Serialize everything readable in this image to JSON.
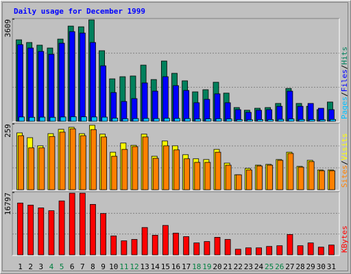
{
  "chart_data": {
    "type": "bar",
    "title": "Daily usage for December 1999",
    "title_color": "#0000ff",
    "legend_separator": "/",
    "categories": [
      "1",
      "2",
      "3",
      "4",
      "5",
      "6",
      "7",
      "8",
      "9",
      "10",
      "11",
      "12",
      "13",
      "14",
      "15",
      "16",
      "17",
      "18",
      "19",
      "20",
      "21",
      "22",
      "23",
      "24",
      "25",
      "26",
      "27",
      "28",
      "29",
      "30",
      "31"
    ],
    "category_colors": [
      "#000000",
      "#000000",
      "#000000",
      "#008040",
      "#008040",
      "#000000",
      "#000000",
      "#000000",
      "#000000",
      "#000000",
      "#008040",
      "#008040",
      "#000000",
      "#000000",
      "#000000",
      "#000000",
      "#000000",
      "#008040",
      "#008040",
      "#000000",
      "#000000",
      "#000000",
      "#000000",
      "#000000",
      "#008040",
      "#008040",
      "#000000",
      "#000000",
      "#000000",
      "#000000",
      "#000000"
    ],
    "panels": [
      {
        "ylim": [
          0,
          3609
        ],
        "yticks": [
          3609
        ],
        "grid": true,
        "series": [
          {
            "name": "Hits",
            "color": "#00805c",
            "values": [
              2880,
              2785,
              2690,
              2590,
              2905,
              3365,
              3340,
              3585,
              2495,
              1500,
              1575,
              1600,
              1985,
              1475,
              2130,
              1695,
              1430,
              1040,
              1115,
              1380,
              995,
              485,
              390,
              460,
              485,
              630,
              1160,
              630,
              530,
              410,
              680
            ]
          },
          {
            "name": "Files",
            "color": "#0000ff",
            "values": [
              2710,
              2590,
              2470,
              2370,
              2760,
              3170,
              3120,
              2785,
              1960,
              1015,
              700,
              800,
              1355,
              1065,
              1575,
              1260,
              1090,
              655,
              775,
              970,
              655,
              410,
              315,
              390,
              410,
              530,
              1065,
              530,
              630,
              460,
              410
            ]
          },
          {
            "name": "Pages",
            "color": "#00c0ff",
            "values": [
              150,
              140,
              145,
              140,
              150,
              160,
              155,
              150,
              145,
              110,
              90,
              95,
              100,
              95,
              105,
              100,
              95,
              80,
              85,
              90,
              80,
              60,
              55,
              60,
              60,
              70,
              80,
              65,
              60,
              55,
              65
            ]
          }
        ]
      },
      {
        "ylim": [
          0,
          259
        ],
        "yticks": [
          259
        ],
        "grid": true,
        "series": [
          {
            "name": "Visits",
            "color": "#ffff00",
            "values": [
              224,
              205,
              173,
              221,
              238,
              246,
              221,
              254,
              219,
              148,
              184,
              175,
              219,
              132,
              192,
              173,
              138,
              122,
              119,
              159,
              105,
              59,
              84,
              97,
              100,
              119,
              148,
              92,
              116,
              78,
              78
            ]
          },
          {
            "name": "Sites",
            "color": "#ff8000",
            "values": [
              213,
              165,
              165,
              210,
              227,
              240,
              213,
              237,
              208,
              132,
              159,
              170,
              208,
              124,
              173,
              157,
              122,
              108,
              108,
              148,
              97,
              59,
              78,
              94,
              97,
              116,
              143,
              89,
              111,
              75,
              75
            ]
          }
        ]
      },
      {
        "ylim": [
          0,
          16797
        ],
        "yticks": [
          16797
        ],
        "grid": true,
        "series": [
          {
            "name": "KBytes",
            "color": "#ff0000",
            "values": [
              13960,
              13400,
              12645,
              11890,
              14530,
              16610,
              16610,
              13590,
              11135,
              5095,
              3775,
              4150,
              7360,
              5285,
              7925,
              5850,
              4905,
              3210,
              3585,
              4720,
              4150,
              1510,
              1885,
              1885,
              2265,
              2455,
              5475,
              2455,
              3210,
              2075,
              2640
            ]
          }
        ]
      }
    ]
  }
}
